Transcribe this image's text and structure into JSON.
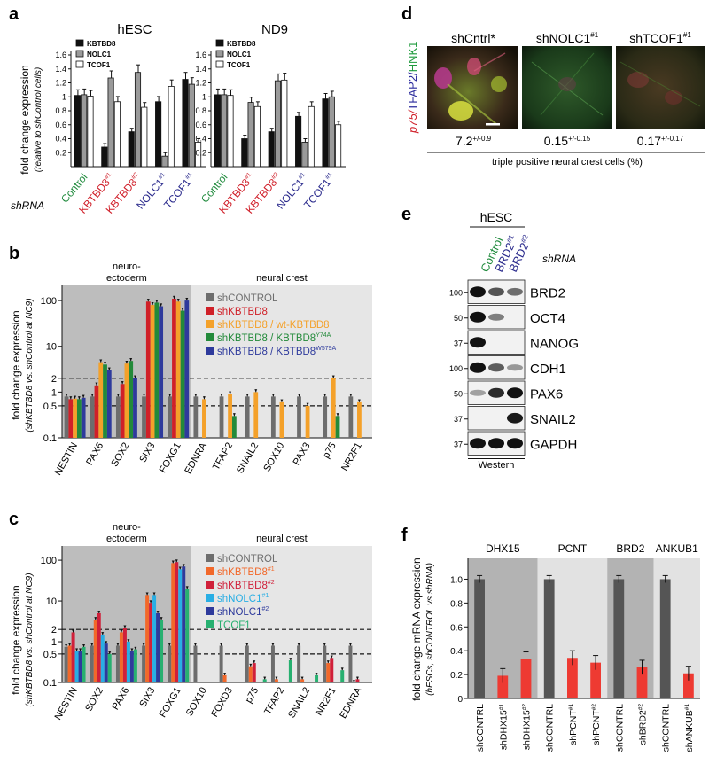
{
  "panels": {
    "a": {
      "letter": "a",
      "ylabel": "fold change expression",
      "ylabel2": "(relative to shControl cells)",
      "shrna_label": "shRNA",
      "yticks": [
        "1.6",
        "1.4",
        "1.2",
        "1",
        "0.8",
        "0.6",
        "0.4",
        "0.2"
      ],
      "legend": [
        "KBTBD8",
        "NOLC1",
        "TCOF1"
      ],
      "groups": [
        "Control",
        "KBTBD8",
        "KBTBD8",
        "NOLC1",
        "TCOF1"
      ],
      "group_sups": [
        "",
        "#1",
        "#2",
        "#1",
        "#1"
      ]
    },
    "b": {
      "letter": "b",
      "ylabel": "fold change expression",
      "ylabel2": "(shKBTBD8 vs. shControl at NC9)",
      "region1": "neuro-",
      "region1b": "ectoderm",
      "region2": "neural crest",
      "yticks": [
        "100",
        "10",
        "2",
        "1",
        "0.5",
        "0.1"
      ],
      "legend": [
        "shCONTROL",
        "shKBTBD8",
        "shKBTBD8 / wt-KBTBD8",
        "shKBTBD8 / KBTBD8",
        "shKBTBD8 / KBTBD8"
      ],
      "legend_sups": [
        "",
        "",
        "",
        "Y74A",
        "W579A"
      ],
      "genes": [
        "NESTIN",
        "PAX6",
        "SOX2",
        "SIX3",
        "FOXG1",
        "EDNRA",
        "TFAP2",
        "SNAIL2",
        "SOX10",
        "PAX3",
        "p75",
        "NR2F1"
      ]
    },
    "c": {
      "letter": "c",
      "ylabel": "fold change expression",
      "ylabel2": "(shKBTBD8 vs. shControl at NC9)",
      "region1": "neuro-",
      "region1b": "ectoderm",
      "region2": "neural crest",
      "yticks": [
        "100",
        "10",
        "2",
        "1",
        "0.5",
        "0.1"
      ],
      "legend": [
        "shCONTROL",
        "shKBTBD8",
        "shKBTBD8",
        "shNOLC1",
        "shNOLC1",
        "TCOF1"
      ],
      "legend_sups": [
        "",
        "#1",
        "#2",
        "#1",
        "#2",
        ""
      ],
      "genes": [
        "NESTIN",
        "SOX2",
        "PAX6",
        "SIX3",
        "FOXG1",
        "SOX10",
        "FOXD3",
        "p75",
        "TFAP2",
        "SNAIL2",
        "NR2F1",
        "EDNRA"
      ]
    },
    "d": {
      "letter": "d",
      "side_label_red": "p75/",
      "side_label_blue": "TFAP2/",
      "side_label_green": "HNK1",
      "conditions": [
        "shCntrl*",
        "shNOLC1",
        "shTCOF1"
      ],
      "condition_sups": [
        "",
        "#1",
        "#1"
      ],
      "values": [
        "7.2",
        "0.15",
        "0.17"
      ],
      "errors": [
        "+/-0.9",
        "+/-0.15",
        "+/-0.17"
      ],
      "footer": "triple positive neural crest cells (%)"
    },
    "e": {
      "letter": "e",
      "header": "hESC",
      "lanes": [
        "Control",
        "BRD2",
        "BRD2"
      ],
      "lane_sups": [
        "",
        "#1",
        "#2"
      ],
      "shrna": "shRNA",
      "footer": "Western",
      "markers": [
        "100",
        "50",
        "37",
        "100",
        "50",
        "37",
        "37"
      ],
      "proteins": [
        "BRD2",
        "OCT4",
        "NANOG",
        "CDH1",
        "PAX6",
        "SNAIL2",
        "GAPDH"
      ]
    },
    "f": {
      "letter": "f",
      "ylabel": "fold change mRNA expression",
      "ylabel2": "(hESCs, shCONTROL vs shRNA)",
      "groups": [
        "DHX15",
        "PCNT",
        "BRD2",
        "ANKUB1"
      ],
      "yticks": [
        "1.0",
        "0.8",
        "0.6",
        "0.4",
        "0.2",
        "0"
      ],
      "xlabels": [
        "shCONTRL",
        "shDHX15",
        "shDHX15",
        "shCONTRL",
        "shPCNT",
        "shPCNT",
        "shCONTRL",
        "shBRD2",
        "shCONTRL",
        "shANKUB"
      ],
      "xlabel_sups": [
        "",
        "#1",
        "#2",
        "",
        "#1",
        "#2",
        "",
        "#2",
        "",
        "#1"
      ]
    }
  },
  "chart_data": [
    {
      "type": "bar",
      "panel": "a",
      "title_left": "hESC",
      "title_right": "ND9",
      "ylim": [
        0,
        1.6
      ],
      "categories": [
        "Control",
        "KBTBD8#1",
        "KBTBD8#2",
        "NOLC1#1",
        "TCOF1#1"
      ],
      "subplots": [
        {
          "name": "hESC",
          "series": [
            {
              "name": "KBTBD8",
              "values": [
                1.02,
                0.28,
                0.5,
                0.93,
                1.25
              ]
            },
            {
              "name": "NOLC1",
              "values": [
                1.03,
                1.27,
                1.35,
                0.15,
                1.18
              ]
            },
            {
              "name": "TCOF1",
              "values": [
                1.01,
                0.93,
                0.85,
                1.15,
                0.35
              ]
            }
          ]
        },
        {
          "name": "ND9",
          "series": [
            {
              "name": "KBTBD8",
              "values": [
                1.03,
                0.4,
                0.5,
                0.72,
                0.97
              ]
            },
            {
              "name": "NOLC1",
              "values": [
                1.03,
                0.92,
                1.23,
                0.35,
                1.0
              ]
            },
            {
              "name": "TCOF1",
              "values": [
                1.02,
                0.86,
                1.24,
                0.86,
                0.6
              ]
            }
          ]
        }
      ]
    },
    {
      "type": "bar",
      "panel": "b",
      "yscale": "log",
      "ylim": [
        0.1,
        150
      ],
      "categories": [
        "NESTIN",
        "PAX6",
        "SOX2",
        "SIX3",
        "FOXG1",
        "EDNRA",
        "TFAP2",
        "SNAIL2",
        "SOX10",
        "PAX3",
        "p75",
        "NR2F1"
      ],
      "series": [
        {
          "name": "shCONTROL",
          "values": [
            0.8,
            0.8,
            0.8,
            0.8,
            0.8,
            0.8,
            0.8,
            0.8,
            0.8,
            0.8,
            0.8,
            0.8
          ]
        },
        {
          "name": "shKBTBD8",
          "values": [
            0.7,
            1.4,
            1.5,
            95,
            110,
            null,
            null,
            null,
            null,
            null,
            null,
            null
          ]
        },
        {
          "name": "shKBTBD8 / wt-KBTBD8",
          "values": [
            0.72,
            4.5,
            4.2,
            80,
            95,
            0.7,
            0.9,
            1.0,
            0.6,
            0.5,
            2.0,
            0.6
          ]
        },
        {
          "name": "shKBTBD8 / KBTBD8Y74A",
          "values": [
            0.7,
            4.0,
            4.8,
            90,
            60,
            null,
            0.3,
            null,
            null,
            null,
            0.3,
            null
          ]
        },
        {
          "name": "shKBTBD8 / KBTBD8W579A",
          "values": [
            0.75,
            3.0,
            2.0,
            75,
            100,
            null,
            null,
            null,
            null,
            null,
            null,
            null
          ]
        }
      ]
    },
    {
      "type": "bar",
      "panel": "c",
      "yscale": "log",
      "ylim": [
        0.1,
        150
      ],
      "categories": [
        "NESTIN",
        "SOX2",
        "PAX6",
        "SIX3",
        "FOXG1",
        "SOX10",
        "FOXD3",
        "p75",
        "TFAP2",
        "SNAIL2",
        "NR2F1",
        "EDNRA"
      ],
      "series": [
        {
          "name": "shCONTROL",
          "values": [
            0.75,
            0.8,
            0.8,
            0.8,
            0.8,
            0.8,
            0.8,
            0.8,
            0.8,
            0.8,
            0.8,
            0.8
          ]
        },
        {
          "name": "shKBTBD8#1",
          "values": [
            0.8,
            3.5,
            1.7,
            14,
            85,
            null,
            0.15,
            0.25,
            0.12,
            0.12,
            0.3,
            0.1
          ]
        },
        {
          "name": "shKBTBD8#2",
          "values": [
            1.7,
            5.0,
            2.2,
            9,
            90,
            null,
            null,
            0.3,
            null,
            null,
            0.4,
            0.12
          ]
        },
        {
          "name": "shNOLC1#1",
          "values": [
            0.6,
            1.5,
            1.0,
            14,
            60,
            null,
            null,
            null,
            null,
            null,
            null,
            null
          ]
        },
        {
          "name": "shNOLC1#2",
          "values": [
            0.6,
            0.9,
            0.6,
            5,
            70,
            null,
            null,
            null,
            null,
            null,
            null,
            null
          ]
        },
        {
          "name": "TCOF1",
          "values": [
            0.75,
            0.5,
            0.65,
            3.5,
            20,
            null,
            null,
            0.12,
            0.35,
            0.15,
            0.2,
            null
          ]
        }
      ]
    },
    {
      "type": "bar",
      "panel": "f",
      "ylim": [
        0,
        1.1
      ],
      "categories": [
        "shCONTRL",
        "shDHX15#1",
        "shDHX15#2",
        "shCONTRL",
        "shPCNT#1",
        "shPCNT#2",
        "shCONTRL",
        "shBRD2#2",
        "shCONTRL",
        "shANKUB#1"
      ],
      "values": [
        1.0,
        0.19,
        0.33,
        1.0,
        0.34,
        0.3,
        1.0,
        0.26,
        1.0,
        0.21
      ]
    }
  ],
  "colors": {
    "black": "#111111",
    "gray": "#9a9a9a",
    "white": "#ffffff",
    "green_text": "#1f8a3c",
    "red_text": "#d0202a",
    "blue_text": "#2a2a8c",
    "b_ctrl": "#6d6d6d",
    "b_kb": "#d02028",
    "b_wt": "#f4a12a",
    "b_y74": "#238a3a",
    "b_w579": "#2e3a9c",
    "c_ctrl": "#6d6d6d",
    "c_kb1": "#f2682a",
    "c_kb2": "#d0203a",
    "c_no1": "#29aee4",
    "c_no2": "#2e3a9c",
    "c_tc": "#27b070",
    "f_ctrl": "#555555",
    "f_red": "#ee3a32"
  }
}
